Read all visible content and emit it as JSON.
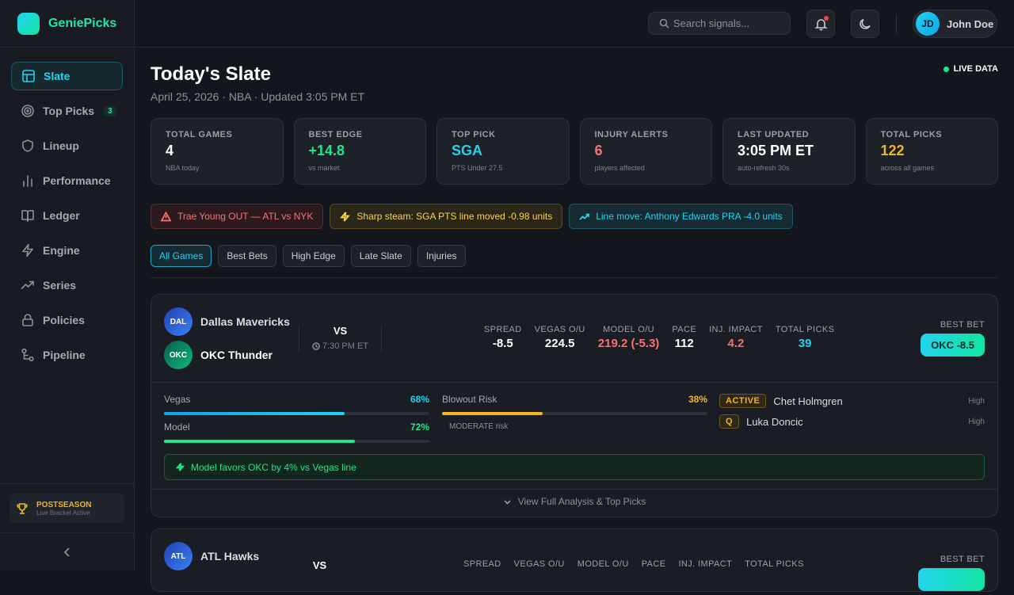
{
  "app": {
    "name": "GeniePicks"
  },
  "sidebar": {
    "items": [
      {
        "label": "Slate",
        "icon": "layout-icon"
      },
      {
        "label": "Top Picks",
        "icon": "target-icon",
        "badge": "3"
      },
      {
        "label": "Lineup",
        "icon": "shield-icon"
      },
      {
        "label": "Performance",
        "icon": "bar-chart-icon"
      },
      {
        "label": "Ledger",
        "icon": "book-icon"
      },
      {
        "label": "Engine",
        "icon": "bolt-icon"
      },
      {
        "label": "Series",
        "icon": "trend-icon"
      },
      {
        "label": "Policies",
        "icon": "lock-icon"
      },
      {
        "label": "Pipeline",
        "icon": "pipeline-icon"
      }
    ],
    "promo": {
      "title": "POSTSEASON",
      "subtitle": "Live Bracket Active"
    }
  },
  "topbar": {
    "search_placeholder": "Search signals...",
    "user": {
      "initials": "JD",
      "name": "John Doe"
    }
  },
  "page": {
    "title": "Today's Slate",
    "subtitle": "April 25, 2026 · NBA · Updated 3:05 PM ET",
    "live_label": "LIVE DATA"
  },
  "stats": [
    {
      "label": "TOTAL GAMES",
      "value": "4",
      "sub": "NBA today",
      "color": "#ffffff"
    },
    {
      "label": "BEST EDGE",
      "value": "+14.8",
      "sub": "vs market",
      "color": "#22e58a"
    },
    {
      "label": "TOP PICK",
      "value": "SGA",
      "sub": "PTS Under 27.5",
      "color": "#22d3ee"
    },
    {
      "label": "INJURY ALERTS",
      "value": "6",
      "sub": "players affected",
      "color": "#f87171"
    },
    {
      "label": "LAST UPDATED",
      "value": "3:05 PM ET",
      "sub": "auto-refresh 30s",
      "color": "#ffffff"
    },
    {
      "label": "TOTAL PICKS",
      "value": "122",
      "sub": "across all games",
      "color": "#f0b429"
    }
  ],
  "alerts": [
    {
      "text": "Trae Young OUT — ATL vs NYK",
      "type": "red"
    },
    {
      "text": "Sharp steam: SGA PTS line moved -0.98 units",
      "type": "yellow"
    },
    {
      "text": "Line move: Anthony Edwards PRA -4.0 units",
      "type": "cyan"
    }
  ],
  "filters": [
    "All Games",
    "Best Bets",
    "High Edge",
    "Late Slate",
    "Injuries"
  ],
  "games": [
    {
      "away": {
        "abbr": "DAL",
        "name": "Dallas Mavericks"
      },
      "home": {
        "abbr": "OKC",
        "name": "OKC Thunder"
      },
      "vs": "VS",
      "time": "7:30 PM ET",
      "stats": [
        {
          "label": "SPREAD",
          "value": "-8.5",
          "color": "#ffffff"
        },
        {
          "label": "VEGAS O/U",
          "value": "224.5",
          "color": "#ffffff"
        },
        {
          "label": "MODEL O/U",
          "value": "219.2 (-5.3)",
          "color": "#f87171"
        },
        {
          "label": "PACE",
          "value": "112",
          "color": "#ffffff"
        },
        {
          "label": "INJ. IMPACT",
          "value": "4.2",
          "color": "#f87171"
        },
        {
          "label": "TOTAL PICKS",
          "value": "39",
          "color": "#22d3ee"
        }
      ],
      "best_bet_label": "BEST BET",
      "best_bet": "OKC -8.5",
      "vegas": {
        "label": "Vegas",
        "pct": "68%",
        "fraction": 0.68
      },
      "model": {
        "label": "Model",
        "pct": "72%",
        "fraction": 0.72
      },
      "blowout": {
        "label": "Blowout Risk",
        "pct": "38%",
        "fraction": 0.38,
        "risk": "MODERATE risk"
      },
      "injuries": [
        {
          "tag": "ACTIVE",
          "name": "Chet Holmgren",
          "level": "High"
        },
        {
          "tag": "Q",
          "name": "Luka Doncic",
          "level": "High"
        }
      ],
      "favor": "Model favors OKC by 4% vs Vegas line",
      "view": "View Full Analysis & Top Picks"
    },
    {
      "away": {
        "abbr": "ATL",
        "name": "ATL Hawks"
      },
      "vs": "VS",
      "stats": [
        {
          "label": "SPREAD"
        },
        {
          "label": "VEGAS O/U"
        },
        {
          "label": "MODEL O/U"
        },
        {
          "label": "PACE"
        },
        {
          "label": "INJ. IMPACT"
        },
        {
          "label": "TOTAL PICKS"
        }
      ],
      "best_bet_label": "BEST BET"
    }
  ]
}
